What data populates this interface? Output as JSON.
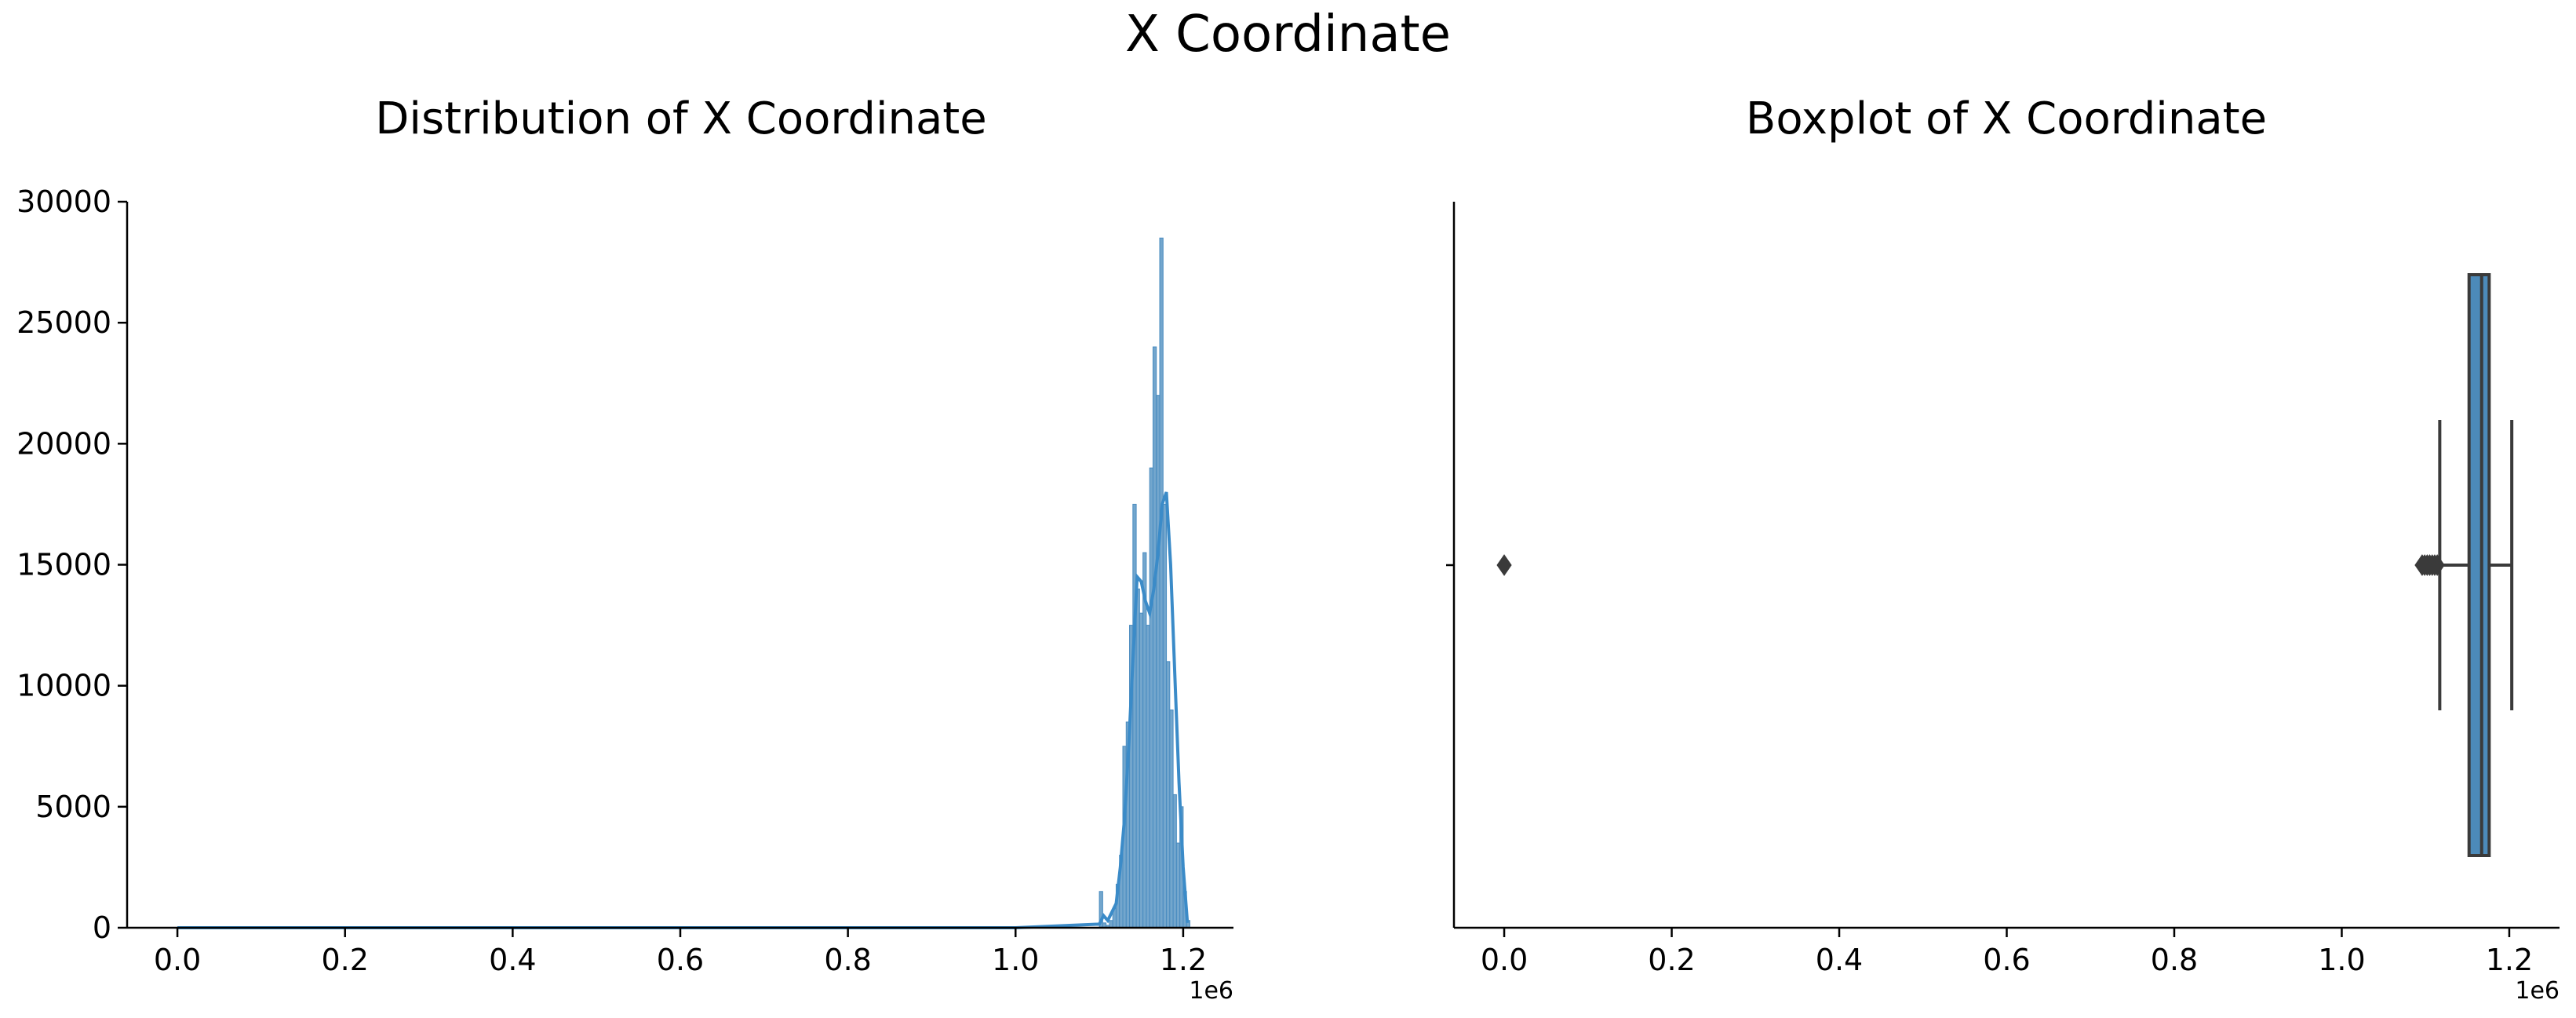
{
  "figure": {
    "suptitle": "X Coordinate"
  },
  "colors": {
    "hist_fill": "#5b97c4",
    "hist_edge": "#4a8cc0",
    "kde": "#3b8bc8",
    "box_fill": "#4c8ab9",
    "box_edge": "#3a3a3a",
    "flier": "#3a3a3a",
    "axis": "#000000"
  },
  "chart_data": [
    {
      "type": "histogram",
      "title": "Distribution of X Coordinate",
      "xlabel": "",
      "ylabel": "",
      "x_offset_label": "1e6",
      "xlim": [
        -0.06,
        1.26
      ],
      "ylim": [
        0,
        30000
      ],
      "xticks": [
        0.0,
        0.2,
        0.4,
        0.6,
        0.8,
        1.0,
        1.2
      ],
      "xtick_labels": [
        "0.0",
        "0.2",
        "0.4",
        "0.6",
        "0.8",
        "1.0",
        "1.2"
      ],
      "yticks": [
        0,
        5000,
        10000,
        15000,
        20000,
        25000,
        30000
      ],
      "ytick_labels": [
        "0",
        "5000",
        "10000",
        "15000",
        "20000",
        "25000",
        "30000"
      ],
      "bins_x": [
        1.1,
        1.104,
        1.108,
        1.112,
        1.116,
        1.12,
        1.124,
        1.128,
        1.132,
        1.136,
        1.14,
        1.144,
        1.148,
        1.152,
        1.156,
        1.16,
        1.164,
        1.168,
        1.172,
        1.176,
        1.18,
        1.184,
        1.188,
        1.192,
        1.196,
        1.2,
        1.204
      ],
      "bins_count": [
        1500,
        200,
        100,
        300,
        800,
        1800,
        3000,
        7500,
        8500,
        12500,
        17500,
        14000,
        13000,
        15500,
        12500,
        19000,
        24000,
        22000,
        28500,
        17500,
        11000,
        9000,
        5500,
        3500,
        5000,
        1500,
        300
      ],
      "kde_x": [
        0.0,
        0.5,
        1.0,
        1.1,
        1.105,
        1.11,
        1.12,
        1.125,
        1.13,
        1.135,
        1.14,
        1.145,
        1.15,
        1.155,
        1.16,
        1.165,
        1.17,
        1.175,
        1.18,
        1.185,
        1.19,
        1.195,
        1.2,
        1.205
      ],
      "kde_y": [
        0,
        0,
        0,
        150,
        500,
        300,
        1000,
        2500,
        4500,
        7500,
        11000,
        14500,
        14300,
        13500,
        13000,
        14000,
        15500,
        17500,
        18000,
        15000,
        10500,
        6000,
        2500,
        200
      ]
    },
    {
      "type": "box",
      "title": "Boxplot of X Coordinate",
      "xlabel": "",
      "x_offset_label": "1e6",
      "xlim": [
        -0.06,
        1.26
      ],
      "xticks": [
        0.0,
        0.2,
        0.4,
        0.6,
        0.8,
        1.0,
        1.2
      ],
      "xtick_labels": [
        "0.0",
        "0.2",
        "0.4",
        "0.6",
        "0.8",
        "1.0",
        "1.2"
      ],
      "whisker_low": 1.117,
      "q1": 1.152,
      "median": 1.167,
      "q3": 1.176,
      "whisker_high": 1.203,
      "outliers": [
        0.0,
        1.096,
        1.099,
        1.102,
        1.105,
        1.108,
        1.111,
        1.114
      ]
    }
  ]
}
